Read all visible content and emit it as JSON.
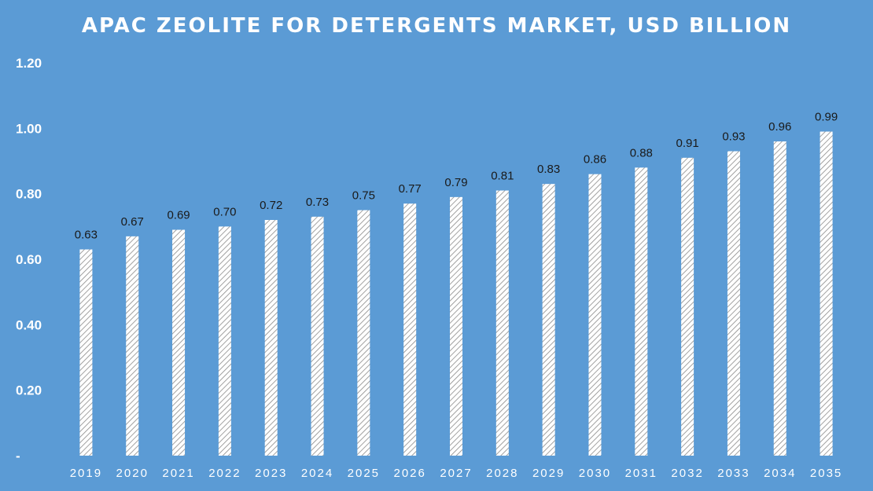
{
  "chart_data": {
    "type": "bar",
    "title": "APAC ZEOLITE FOR DETERGENTS MARKET, USD BILLION",
    "xlabel": "",
    "ylabel": "",
    "categories": [
      "2019",
      "2020",
      "2021",
      "2022",
      "2023",
      "2024",
      "2025",
      "2026",
      "2027",
      "2028",
      "2029",
      "2030",
      "2031",
      "2032",
      "2033",
      "2034",
      "2035"
    ],
    "values": [
      0.63,
      0.67,
      0.69,
      0.7,
      0.72,
      0.73,
      0.75,
      0.77,
      0.79,
      0.81,
      0.83,
      0.86,
      0.88,
      0.91,
      0.93,
      0.96,
      0.99
    ],
    "value_labels": [
      "0.63",
      "0.67",
      "0.69",
      "0.70",
      "0.72",
      "0.73",
      "0.75",
      "0.77",
      "0.79",
      "0.81",
      "0.83",
      "0.86",
      "0.88",
      "0.91",
      "0.93",
      "0.96",
      "0.99"
    ],
    "yticks": [
      0,
      0.2,
      0.4,
      0.6,
      0.8,
      1.0,
      1.2
    ],
    "ytick_labels": [
      "-",
      "0.20",
      "0.40",
      "0.60",
      "0.80",
      "1.00",
      "1.20"
    ],
    "ylim": [
      0,
      1.2
    ],
    "grid": false,
    "legend": "none",
    "colors": {
      "background": "#5b9bd5",
      "bar_fill": "#ffffff",
      "bar_hatch": "#8a8a8a",
      "axis_text": "#ffffff",
      "value_label": "#1a1a1a"
    }
  }
}
